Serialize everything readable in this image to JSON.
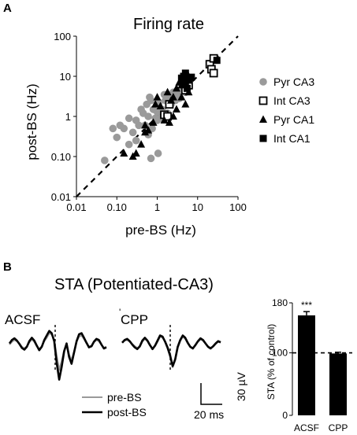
{
  "panel_a_label": "A",
  "panel_b_label": "B",
  "chart_data": [
    {
      "type": "scatter",
      "title": "Firing rate",
      "xlabel": "pre-BS (Hz)",
      "ylabel": "post-BS (Hz)",
      "x_scale": "log",
      "y_scale": "log",
      "xlim": [
        0.01,
        100
      ],
      "ylim": [
        0.01,
        100
      ],
      "xticks": [
        "0.01",
        "0.10",
        "1",
        "10",
        "100"
      ],
      "yticks": [
        "0.01",
        "0.10",
        "1",
        "10",
        "100"
      ],
      "reference_line": "identity (dashed)",
      "legend_placement": "right",
      "series": [
        {
          "name": "Pyr CA3",
          "marker": "circle-filled-gray",
          "color": "#9a9a9a",
          "points": [
            [
              0.05,
              0.08
            ],
            [
              0.08,
              0.5
            ],
            [
              0.1,
              0.3
            ],
            [
              0.12,
              0.6
            ],
            [
              0.15,
              0.5
            ],
            [
              0.2,
              0.9
            ],
            [
              0.25,
              0.4
            ],
            [
              0.3,
              0.8
            ],
            [
              0.35,
              0.6
            ],
            [
              0.4,
              1.5
            ],
            [
              0.45,
              1.2
            ],
            [
              0.5,
              0.6
            ],
            [
              0.55,
              2.0
            ],
            [
              0.6,
              1.0
            ],
            [
              0.65,
              3.0
            ],
            [
              0.7,
              2.5
            ],
            [
              0.75,
              0.5
            ],
            [
              0.8,
              1.5
            ],
            [
              0.9,
              0.9
            ],
            [
              1.0,
              1.3
            ],
            [
              1.0,
              0.8
            ],
            [
              1.05,
              0.12
            ],
            [
              1.1,
              2.2
            ],
            [
              1.2,
              0.9
            ],
            [
              1.3,
              1.5
            ],
            [
              1.5,
              3.5
            ],
            [
              1.6,
              2.5
            ],
            [
              1.8,
              1.2
            ],
            [
              2.0,
              3.0
            ],
            [
              2.2,
              2.0
            ],
            [
              2.5,
              4.0
            ],
            [
              2.8,
              2.5
            ],
            [
              3.0,
              3.5
            ],
            [
              3.5,
              2.8
            ],
            [
              4.0,
              4.5
            ],
            [
              4.5,
              5.0
            ],
            [
              5.0,
              4.0
            ],
            [
              6.0,
              5.5
            ],
            [
              0.7,
              0.09
            ],
            [
              0.3,
              0.25
            ],
            [
              0.2,
              0.2
            ],
            [
              0.6,
              0.35
            ]
          ]
        },
        {
          "name": "Int CA3",
          "marker": "square-open",
          "color": "#000000",
          "points": [
            [
              1.5,
              1.1
            ],
            [
              2.0,
              2.0
            ],
            [
              5.0,
              4.5
            ],
            [
              6.0,
              6.0
            ],
            [
              20.0,
              20.0
            ],
            [
              22.0,
              15.0
            ],
            [
              25.0,
              28.0
            ],
            [
              25.0,
              12.0
            ],
            [
              1.8,
              1.0
            ]
          ]
        },
        {
          "name": "Pyr CA1",
          "marker": "triangle-filled",
          "color": "#000000",
          "points": [
            [
              0.15,
              0.12
            ],
            [
              0.25,
              0.1
            ],
            [
              0.3,
              0.12
            ],
            [
              0.4,
              0.2
            ],
            [
              0.5,
              0.4
            ],
            [
              0.5,
              0.6
            ],
            [
              0.6,
              0.45
            ],
            [
              0.8,
              0.7
            ],
            [
              0.9,
              2.0
            ],
            [
              1.0,
              3.0
            ],
            [
              1.2,
              1.8
            ],
            [
              1.5,
              0.8
            ],
            [
              1.8,
              4.0
            ],
            [
              2.0,
              0.7
            ],
            [
              2.5,
              3.0
            ],
            [
              2.5,
              1.0
            ],
            [
              3.0,
              1.5
            ],
            [
              3.5,
              7.0
            ],
            [
              4.0,
              6.0
            ],
            [
              4.0,
              3.0
            ],
            [
              4.5,
              8.0
            ],
            [
              5.0,
              2.0
            ],
            [
              6.0,
              10.0
            ],
            [
              6.0,
              4.0
            ],
            [
              3.0,
              5.0
            ],
            [
              2.2,
              2.5
            ]
          ]
        },
        {
          "name": "Int CA1",
          "marker": "square-filled",
          "color": "#000000",
          "points": [
            [
              4.0,
              9.0
            ],
            [
              4.5,
              10.0
            ],
            [
              5.0,
              7.0
            ],
            [
              5.5,
              5.0
            ],
            [
              6.0,
              8.0
            ],
            [
              7.0,
              9.5
            ],
            [
              30.0,
              25.0
            ],
            [
              5.0,
              12.0
            ]
          ]
        }
      ]
    },
    {
      "type": "line",
      "title": "STA (Potentiated-CA3)",
      "subplots": [
        {
          "label": "ACSF",
          "series": [
            {
              "name": "pre-BS",
              "color": "#9a9a9a",
              "values": [
                0,
                5,
                8,
                6,
                2,
                -4,
                -7,
                -3,
                4,
                9,
                5,
                -3,
                -8,
                -3,
                6,
                12,
                20,
                18,
                8,
                -20,
                -45,
                -30,
                -10,
                0,
                -18,
                -28,
                -12,
                5,
                14,
                16,
                10,
                2,
                -4,
                -2,
                4,
                8,
                6,
                0,
                -6,
                -4
              ]
            },
            {
              "name": "post-BS",
              "color": "#000000",
              "values": [
                2,
                8,
                11,
                7,
                1,
                -6,
                -9,
                -4,
                6,
                12,
                7,
                -2,
                -10,
                -4,
                8,
                16,
                24,
                20,
                6,
                -32,
                -62,
                -40,
                -12,
                2,
                -22,
                -34,
                -14,
                6,
                18,
                20,
                12,
                3,
                -5,
                -3,
                5,
                10,
                8,
                0,
                -7,
                -5
              ]
            }
          ]
        },
        {
          "label": "CPP",
          "series": [
            {
              "name": "pre-BS",
              "color": "#9a9a9a",
              "values": [
                4,
                7,
                8,
                5,
                1,
                -3,
                -6,
                -4,
                5,
                10,
                6,
                -2,
                -7,
                -3,
                5,
                14,
                12,
                6,
                -4,
                -16,
                -40,
                -28,
                -6,
                6,
                14,
                10,
                2,
                -4,
                -6,
                -2,
                5,
                9,
                7,
                2,
                -3,
                -6,
                -4,
                1,
                5,
                3
              ]
            },
            {
              "name": "post-BS",
              "color": "#000000",
              "values": [
                3,
                8,
                10,
                6,
                0,
                -5,
                -8,
                -3,
                7,
                12,
                7,
                -1,
                -8,
                -2,
                7,
                16,
                14,
                5,
                -6,
                -20,
                -38,
                -26,
                -4,
                8,
                16,
                12,
                3,
                -4,
                -7,
                -1,
                6,
                11,
                8,
                2,
                -4,
                -7,
                -3,
                2,
                6,
                4
              ]
            }
          ]
        }
      ],
      "legend": [
        "pre-BS",
        "post-BS"
      ],
      "scale_bar": {
        "y_label": "30 µV",
        "x_label": "20 ms"
      }
    },
    {
      "type": "bar",
      "categories": [
        "ACSF",
        "CPP"
      ],
      "values": [
        160,
        99
      ],
      "errors": [
        6,
        2
      ],
      "ylabel": "STA (% of control)",
      "ylim": [
        0,
        180
      ],
      "yticks": [
        "0",
        "100",
        "180"
      ],
      "reference_line_value": 100,
      "annotations": [
        {
          "category": "ACSF",
          "text": "***"
        }
      ]
    }
  ]
}
